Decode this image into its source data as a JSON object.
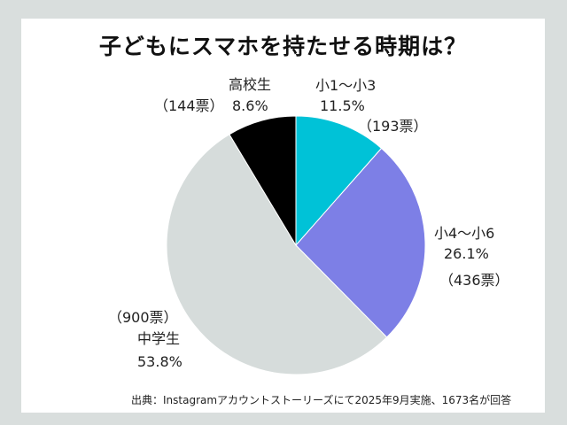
{
  "colors": {
    "background": "#d9dedd",
    "card": "#ffffff",
    "slice_1": "#00c2d7",
    "slice_2": "#7d7fe6",
    "slice_3": "#d6dcdb",
    "slice_4": "#000000"
  },
  "chart_data": {
    "type": "pie",
    "title": "子どもにスマホを持たせる時期は？",
    "categories": [
      "小1〜小3",
      "小4〜小6",
      "中学生",
      "高校生"
    ],
    "values": [
      11.5,
      26.1,
      53.8,
      8.6
    ],
    "value_labels": [
      "11.5%",
      "26.1%",
      "53.8%",
      "8.6%"
    ],
    "counts": [
      "（193票）",
      "（436票）",
      "（900票）",
      "（144票）"
    ],
    "start_angle_deg": 0,
    "direction": "clockwise",
    "source": "出典：Instagramアカウントストーリーズにて2025年9月実施、1673名が回答"
  }
}
